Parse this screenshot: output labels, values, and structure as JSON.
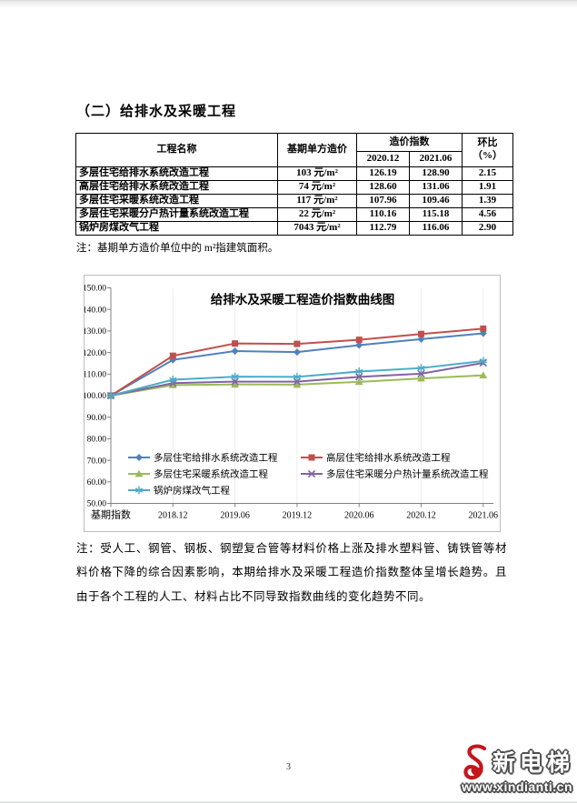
{
  "page": {
    "section_title": "（二）给排水及采暖工程",
    "table_note": "注：基期单方造价单位中的 m²指建筑面积。",
    "analysis_note": "注：受人工、钢管、钢板、钢塑复合管等材料价格上涨及排水塑料管、铸铁管等材料价格下降的综合因素影响，本期给排水及采暖工程造价指数整体呈增长趋势。且由于各个工程的人工、材料占比不同导致指数曲线的变化趋势不同。",
    "page_number": "3"
  },
  "table": {
    "headers": {
      "name": "工程名称",
      "base_cost": "基期单方造价",
      "index_group": "造价指数",
      "index_cols": [
        "2020.12",
        "2021.06"
      ],
      "mom_line1": "环比",
      "mom_line2": "（%）"
    },
    "rows": [
      {
        "name": "多层住宅给排水系统改造工程",
        "base_cost": "103 元/m²",
        "idx1": "126.19",
        "idx2": "128.90",
        "mom": "2.15"
      },
      {
        "name": "高层住宅给排水系统改造工程",
        "base_cost": "74 元/m²",
        "idx1": "128.60",
        "idx2": "131.06",
        "mom": "1.91"
      },
      {
        "name": "多层住宅采暖系统改造工程",
        "base_cost": "117 元/m²",
        "idx1": "107.96",
        "idx2": "109.46",
        "mom": "1.39"
      },
      {
        "name": "多层住宅采暖分户热计量系统改造工程",
        "base_cost": "22 元/m²",
        "idx1": "110.16",
        "idx2": "115.18",
        "mom": "4.56"
      },
      {
        "name": "锅炉房煤改气工程",
        "base_cost": "7043 元/m²",
        "idx1": "112.79",
        "idx2": "116.06",
        "mom": "2.90"
      }
    ]
  },
  "chart_data": {
    "type": "line",
    "title": "给排水及采暖工程造价指数曲线图",
    "categories": [
      "基期指数",
      "2018.12",
      "2019.06",
      "2019.12",
      "2020.06",
      "2020.12",
      "2021.06"
    ],
    "ylim": [
      50,
      150
    ],
    "ytick_step": 10,
    "grid": false,
    "legend_position": "inside-bottom-left",
    "axis_color": "#808080",
    "series": [
      {
        "name": "多层住宅给排水系统改造工程",
        "color": "#4F81BD",
        "marker": "diamond",
        "values": [
          100,
          116.6,
          120.7,
          120.2,
          123.4,
          126.19,
          128.9
        ]
      },
      {
        "name": "高层住宅给排水系统改造工程",
        "color": "#C0504D",
        "marker": "square",
        "values": [
          100,
          118.5,
          124.2,
          124.0,
          125.9,
          128.6,
          131.06
        ]
      },
      {
        "name": "多层住宅采暖系统改造工程",
        "color": "#9BBB59",
        "marker": "triangle",
        "values": [
          100,
          104.9,
          105.2,
          105.1,
          106.4,
          107.96,
          109.46
        ]
      },
      {
        "name": "多层住宅采暖分户热计量系统改造工程",
        "color": "#8064A2",
        "marker": "x",
        "values": [
          100,
          105.8,
          106.5,
          106.5,
          108.7,
          110.16,
          115.18
        ]
      },
      {
        "name": "锅炉房煤改气工程",
        "color": "#4BACC6",
        "marker": "asterisk",
        "values": [
          100,
          107.4,
          108.8,
          108.7,
          111.2,
          112.79,
          116.06
        ]
      }
    ]
  },
  "footer": {
    "logo": {
      "brand": "新电梯",
      "url_text": "www.xindianti.cn"
    }
  }
}
